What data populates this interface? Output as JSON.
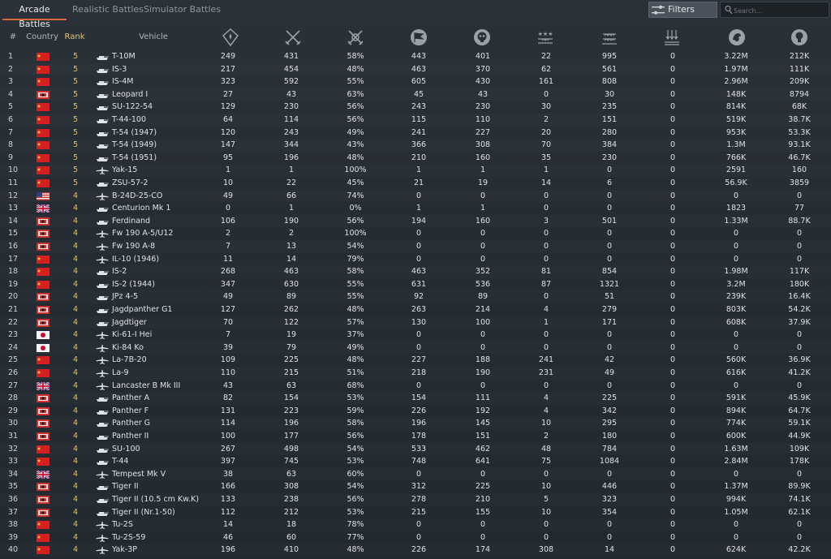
{
  "tabs": [
    {
      "label": "Arcade Battles",
      "active": true
    },
    {
      "label": "Realistic Battles",
      "active": false
    },
    {
      "label": "Simulator Battles",
      "active": false
    }
  ],
  "filters_label": "Filters",
  "search_placeholder": "Search...",
  "columns": {
    "num": "#",
    "country": "Country",
    "rank": "Rank",
    "vehicle": "Vehicle",
    "icons": [
      "battles-icon",
      "victories-icon",
      "win-rate-icon",
      "respawns-icon",
      "deaths-icon",
      "air-targets-destroyed-icon",
      "ground-targets-destroyed-icon",
      "naval-targets-destroyed-icon",
      "silver-lions-icon",
      "research-points-icon"
    ]
  },
  "colors": {
    "accent": "#d46a3a",
    "rank": "#e0c26a"
  },
  "rows": [
    {
      "n": "1",
      "country": "china",
      "rank": "5",
      "type": "tank",
      "vehicle": "T-10M",
      "v": [
        "249",
        "431",
        "58%",
        "443",
        "401",
        "22",
        "995",
        "0",
        "3.22M",
        "212K"
      ]
    },
    {
      "n": "2",
      "country": "china",
      "rank": "5",
      "type": "tank",
      "vehicle": "IS-3",
      "v": [
        "217",
        "454",
        "48%",
        "463",
        "370",
        "62",
        "561",
        "0",
        "1.97M",
        "111K"
      ]
    },
    {
      "n": "3",
      "country": "china",
      "rank": "5",
      "type": "tank",
      "vehicle": "IS-4M",
      "v": [
        "323",
        "592",
        "55%",
        "605",
        "430",
        "161",
        "808",
        "0",
        "2.96M",
        "209K"
      ]
    },
    {
      "n": "4",
      "country": "germany",
      "rank": "5",
      "type": "tank",
      "vehicle": "Leopard I",
      "v": [
        "27",
        "43",
        "63%",
        "45",
        "43",
        "0",
        "30",
        "0",
        "148K",
        "8794"
      ]
    },
    {
      "n": "5",
      "country": "china",
      "rank": "5",
      "type": "tank",
      "vehicle": "SU-122-54",
      "v": [
        "129",
        "230",
        "56%",
        "243",
        "230",
        "30",
        "235",
        "0",
        "814K",
        "68K"
      ]
    },
    {
      "n": "6",
      "country": "china",
      "rank": "5",
      "type": "tank",
      "vehicle": "T-44-100",
      "v": [
        "64",
        "114",
        "56%",
        "115",
        "110",
        "2",
        "151",
        "0",
        "519K",
        "38.7K"
      ]
    },
    {
      "n": "7",
      "country": "china",
      "rank": "5",
      "type": "tank",
      "vehicle": "T-54 (1947)",
      "v": [
        "120",
        "243",
        "49%",
        "241",
        "227",
        "20",
        "280",
        "0",
        "953K",
        "53.3K"
      ]
    },
    {
      "n": "8",
      "country": "china",
      "rank": "5",
      "type": "tank",
      "vehicle": "T-54 (1949)",
      "v": [
        "147",
        "344",
        "43%",
        "366",
        "308",
        "70",
        "384",
        "0",
        "1.3M",
        "93.1K"
      ]
    },
    {
      "n": "9",
      "country": "china",
      "rank": "5",
      "type": "tank",
      "vehicle": "T-54 (1951)",
      "v": [
        "95",
        "196",
        "48%",
        "210",
        "160",
        "35",
        "230",
        "0",
        "766K",
        "46.7K"
      ]
    },
    {
      "n": "10",
      "country": "china",
      "rank": "5",
      "type": "plane",
      "vehicle": "Yak-15",
      "v": [
        "1",
        "1",
        "100%",
        "1",
        "1",
        "1",
        "0",
        "0",
        "2591",
        "160"
      ]
    },
    {
      "n": "11",
      "country": "china",
      "rank": "5",
      "type": "tank",
      "vehicle": "ZSU-57-2",
      "v": [
        "10",
        "22",
        "45%",
        "21",
        "19",
        "14",
        "6",
        "0",
        "56.9K",
        "3859"
      ]
    },
    {
      "n": "12",
      "country": "usa",
      "rank": "4",
      "type": "plane",
      "vehicle": "B-24D-25-CO",
      "v": [
        "49",
        "66",
        "74%",
        "0",
        "0",
        "0",
        "0",
        "0",
        "0",
        "0"
      ]
    },
    {
      "n": "13",
      "country": "uk",
      "rank": "4",
      "type": "tank",
      "vehicle": "Centurion Mk 1",
      "v": [
        "0",
        "1",
        "0%",
        "1",
        "1",
        "0",
        "0",
        "0",
        "1823",
        "77"
      ]
    },
    {
      "n": "14",
      "country": "germany",
      "rank": "4",
      "type": "tank",
      "vehicle": "Ferdinand",
      "v": [
        "106",
        "190",
        "56%",
        "194",
        "160",
        "3",
        "501",
        "0",
        "1.33M",
        "88.7K"
      ]
    },
    {
      "n": "15",
      "country": "germany",
      "rank": "4",
      "type": "plane",
      "vehicle": "Fw 190 A-5/U12",
      "v": [
        "2",
        "2",
        "100%",
        "0",
        "0",
        "0",
        "0",
        "0",
        "0",
        "0"
      ]
    },
    {
      "n": "16",
      "country": "germany",
      "rank": "4",
      "type": "plane",
      "vehicle": "Fw 190 A-8",
      "v": [
        "7",
        "13",
        "54%",
        "0",
        "0",
        "0",
        "0",
        "0",
        "0",
        "0"
      ]
    },
    {
      "n": "17",
      "country": "china",
      "rank": "4",
      "type": "plane",
      "vehicle": "IL-10 (1946)",
      "v": [
        "11",
        "14",
        "79%",
        "0",
        "0",
        "0",
        "0",
        "0",
        "0",
        "0"
      ]
    },
    {
      "n": "18",
      "country": "china",
      "rank": "4",
      "type": "tank",
      "vehicle": "IS-2",
      "v": [
        "268",
        "463",
        "58%",
        "463",
        "352",
        "81",
        "854",
        "0",
        "1.98M",
        "117K"
      ]
    },
    {
      "n": "19",
      "country": "china",
      "rank": "4",
      "type": "tank",
      "vehicle": "IS-2 (1944)",
      "v": [
        "347",
        "630",
        "55%",
        "631",
        "536",
        "87",
        "1321",
        "0",
        "3.2M",
        "180K"
      ]
    },
    {
      "n": "20",
      "country": "germany",
      "rank": "4",
      "type": "tank",
      "vehicle": "JPz 4-5",
      "v": [
        "49",
        "89",
        "55%",
        "92",
        "89",
        "0",
        "51",
        "0",
        "239K",
        "16.4K"
      ]
    },
    {
      "n": "21",
      "country": "germany",
      "rank": "4",
      "type": "tank",
      "vehicle": "Jagdpanther G1",
      "v": [
        "127",
        "262",
        "48%",
        "263",
        "214",
        "4",
        "279",
        "0",
        "803K",
        "54.2K"
      ]
    },
    {
      "n": "22",
      "country": "germany",
      "rank": "4",
      "type": "tank",
      "vehicle": "Jagdtiger",
      "v": [
        "70",
        "122",
        "57%",
        "130",
        "100",
        "1",
        "171",
        "0",
        "608K",
        "37.9K"
      ]
    },
    {
      "n": "23",
      "country": "japan",
      "rank": "4",
      "type": "plane",
      "vehicle": "Ki-61-I Hei",
      "v": [
        "7",
        "19",
        "37%",
        "0",
        "0",
        "0",
        "0",
        "0",
        "0",
        "0"
      ]
    },
    {
      "n": "24",
      "country": "japan",
      "rank": "4",
      "type": "plane",
      "vehicle": "Ki-84 Ko",
      "v": [
        "39",
        "79",
        "49%",
        "0",
        "0",
        "0",
        "0",
        "0",
        "0",
        "0"
      ]
    },
    {
      "n": "25",
      "country": "china",
      "rank": "4",
      "type": "plane",
      "vehicle": "La-7B-20",
      "v": [
        "109",
        "225",
        "48%",
        "227",
        "188",
        "241",
        "42",
        "0",
        "560K",
        "36.9K"
      ]
    },
    {
      "n": "26",
      "country": "china",
      "rank": "4",
      "type": "plane",
      "vehicle": "La-9",
      "v": [
        "110",
        "215",
        "51%",
        "218",
        "190",
        "231",
        "49",
        "0",
        "616K",
        "41.2K"
      ]
    },
    {
      "n": "27",
      "country": "uk",
      "rank": "4",
      "type": "plane",
      "vehicle": "Lancaster B Mk III",
      "v": [
        "43",
        "63",
        "68%",
        "0",
        "0",
        "0",
        "0",
        "0",
        "0",
        "0"
      ]
    },
    {
      "n": "28",
      "country": "germany",
      "rank": "4",
      "type": "tank",
      "vehicle": "Panther A",
      "v": [
        "82",
        "154",
        "53%",
        "154",
        "111",
        "4",
        "225",
        "0",
        "591K",
        "45.9K"
      ]
    },
    {
      "n": "29",
      "country": "germany",
      "rank": "4",
      "type": "tank",
      "vehicle": "Panther F",
      "v": [
        "131",
        "223",
        "59%",
        "226",
        "192",
        "4",
        "342",
        "0",
        "894K",
        "64.7K"
      ]
    },
    {
      "n": "30",
      "country": "germany",
      "rank": "4",
      "type": "tank",
      "vehicle": "Panther G",
      "v": [
        "114",
        "196",
        "58%",
        "196",
        "145",
        "10",
        "295",
        "0",
        "774K",
        "59.1K"
      ]
    },
    {
      "n": "31",
      "country": "germany",
      "rank": "4",
      "type": "tank",
      "vehicle": "Panther II",
      "v": [
        "100",
        "177",
        "56%",
        "178",
        "151",
        "2",
        "180",
        "0",
        "600K",
        "44.9K"
      ]
    },
    {
      "n": "32",
      "country": "china",
      "rank": "4",
      "type": "tank",
      "vehicle": "SU-100",
      "v": [
        "267",
        "498",
        "54%",
        "533",
        "462",
        "48",
        "784",
        "0",
        "1.63M",
        "109K"
      ]
    },
    {
      "n": "33",
      "country": "china",
      "rank": "4",
      "type": "tank",
      "vehicle": "T-44",
      "v": [
        "397",
        "745",
        "53%",
        "748",
        "641",
        "75",
        "1084",
        "0",
        "2.84M",
        "178K"
      ]
    },
    {
      "n": "34",
      "country": "uk",
      "rank": "4",
      "type": "plane",
      "vehicle": "Tempest Mk V",
      "v": [
        "38",
        "63",
        "60%",
        "0",
        "0",
        "0",
        "0",
        "0",
        "0",
        "0"
      ]
    },
    {
      "n": "35",
      "country": "germany",
      "rank": "4",
      "type": "tank",
      "vehicle": "Tiger II",
      "v": [
        "166",
        "308",
        "54%",
        "312",
        "225",
        "10",
        "446",
        "0",
        "1.37M",
        "89.9K"
      ]
    },
    {
      "n": "36",
      "country": "germany",
      "rank": "4",
      "type": "tank",
      "vehicle": "Tiger II (10.5 cm Kw.K)",
      "v": [
        "133",
        "238",
        "56%",
        "278",
        "210",
        "5",
        "323",
        "0",
        "994K",
        "74.1K"
      ]
    },
    {
      "n": "37",
      "country": "germany",
      "rank": "4",
      "type": "tank",
      "vehicle": "Tiger II (Nr.1-50)",
      "v": [
        "112",
        "212",
        "53%",
        "215",
        "155",
        "10",
        "354",
        "0",
        "1.05M",
        "62.1K"
      ]
    },
    {
      "n": "38",
      "country": "china",
      "rank": "4",
      "type": "plane",
      "vehicle": "Tu-2S",
      "v": [
        "14",
        "18",
        "78%",
        "0",
        "0",
        "0",
        "0",
        "0",
        "0",
        "0"
      ]
    },
    {
      "n": "39",
      "country": "china",
      "rank": "4",
      "type": "plane",
      "vehicle": "Tu-2S-59",
      "v": [
        "46",
        "60",
        "77%",
        "0",
        "0",
        "0",
        "0",
        "0",
        "0",
        "0"
      ]
    },
    {
      "n": "40",
      "country": "china",
      "rank": "4",
      "type": "plane",
      "vehicle": "Yak-3P",
      "v": [
        "196",
        "410",
        "48%",
        "226",
        "174",
        "308",
        "14",
        "0",
        "624K",
        "42.2K"
      ]
    }
  ]
}
